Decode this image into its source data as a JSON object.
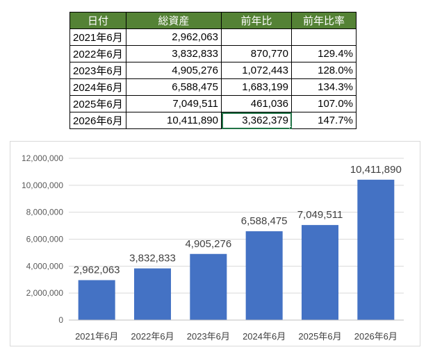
{
  "table": {
    "headers": [
      "日付",
      "総資産",
      "前年比",
      "前年比率"
    ],
    "rows": [
      [
        "2021年6月",
        "2,962,063",
        "",
        ""
      ],
      [
        "2022年6月",
        "3,832,833",
        "870,770",
        "129.4%"
      ],
      [
        "2023年6月",
        "4,905,276",
        "1,072,443",
        "128.0%"
      ],
      [
        "2024年6月",
        "6,588,475",
        "1,683,199",
        "134.3%"
      ],
      [
        "2025年6月",
        "7,049,511",
        "461,036",
        "107.0%"
      ],
      [
        "2026年6月",
        "10,411,890",
        "3,362,379",
        "147.7%"
      ]
    ],
    "header_color": "#548235",
    "selected_cell": {
      "row": 5,
      "col": 2
    }
  },
  "chart_data": {
    "type": "bar",
    "categories": [
      "2021年6月",
      "2022年6月",
      "2023年6月",
      "2024年6月",
      "2025年6月",
      "2026年6月"
    ],
    "values": [
      2962063,
      3832833,
      4905276,
      6588475,
      7049511,
      10411890
    ],
    "data_labels": [
      "2,962,063",
      "3,832,833",
      "4,905,276",
      "6,588,475",
      "7,049,511",
      "10,411,890"
    ],
    "y_ticks": [
      "0",
      "2,000,000",
      "4,000,000",
      "6,000,000",
      "8,000,000",
      "10,000,000",
      "12,000,000"
    ],
    "ylim": [
      0,
      12000000
    ],
    "title": "",
    "xlabel": "",
    "ylabel": "",
    "grid": true,
    "legend": "none",
    "bar_color": "#4472C4",
    "grid_color": "#d9d9d9"
  }
}
